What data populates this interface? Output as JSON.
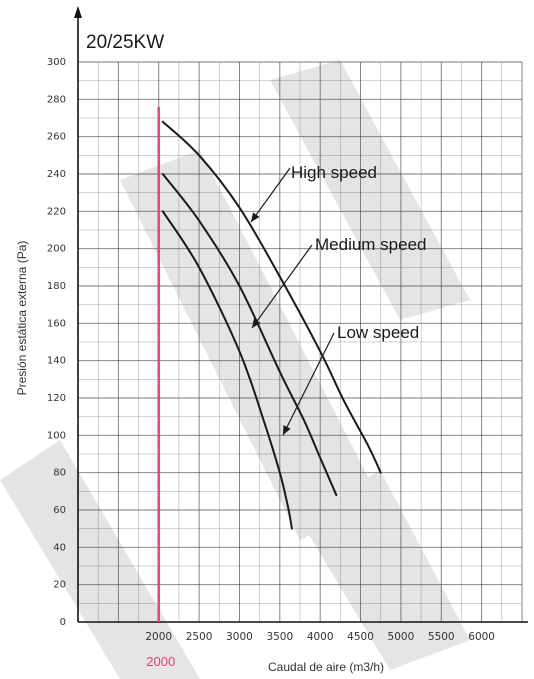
{
  "chart_data": {
    "type": "line",
    "title": "20/25KW",
    "xlabel": "Caudal de aire (m3/h)",
    "ylabel": "Presión estática externa (Pa)",
    "xlim": [
      1000,
      6500
    ],
    "ylim": [
      0,
      300
    ],
    "x_ticks": [
      2000,
      2500,
      3000,
      3500,
      4000,
      4500,
      5000,
      5500,
      6000
    ],
    "y_ticks": [
      0,
      20,
      40,
      60,
      80,
      100,
      120,
      140,
      160,
      180,
      200,
      220,
      240,
      260,
      280,
      300
    ],
    "grid": true,
    "series": [
      {
        "name": "High speed",
        "x": [
          2050,
          2500,
          3000,
          3500,
          4000,
          4300,
          4600,
          4750
        ],
        "y": [
          268,
          250,
          222,
          185,
          145,
          118,
          94,
          80
        ]
      },
      {
        "name": "Medium speed",
        "x": [
          2050,
          2500,
          3000,
          3500,
          3800,
          4000,
          4200
        ],
        "y": [
          240,
          215,
          180,
          134,
          108,
          88,
          68
        ]
      },
      {
        "name": "Low speed",
        "x": [
          2050,
          2500,
          3000,
          3300,
          3500,
          3600,
          3650
        ],
        "y": [
          220,
          190,
          145,
          108,
          80,
          62,
          50
        ]
      }
    ],
    "annotations": [
      {
        "text": "High speed",
        "points_to": "High speed"
      },
      {
        "text": "Medium speed",
        "points_to": "Medium speed"
      },
      {
        "text": "Low speed",
        "points_to": "Low speed"
      }
    ],
    "vertical_line": {
      "x": 2000,
      "label": "2000",
      "color": "#e0417a"
    },
    "colors": {
      "curve": "#1a1a1a",
      "grid": "#4a4a4a",
      "marker": "#e0417a"
    }
  }
}
